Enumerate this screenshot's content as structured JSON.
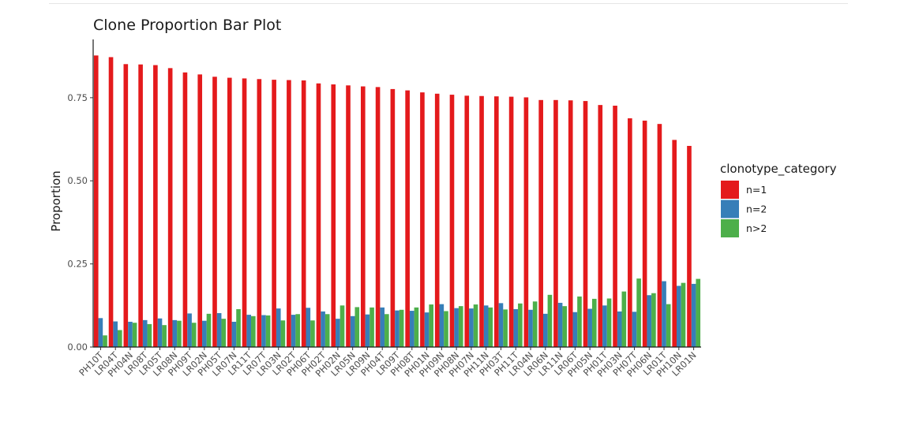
{
  "chart_data": {
    "type": "bar",
    "title": "Clone Proportion Bar Plot",
    "xlabel": "",
    "ylabel": "Proportion",
    "ylim": [
      0,
      0.93
    ],
    "yticks": [
      0.0,
      0.25,
      0.5,
      0.75
    ],
    "ytick_labels": [
      "0.00",
      "0.25",
      "0.50",
      "0.75"
    ],
    "grid": false,
    "legend": {
      "title": "clonotype_category",
      "position": "right"
    },
    "categories": [
      "PH10T",
      "LR04T",
      "PH04N",
      "LR08T",
      "LR05T",
      "LR08N",
      "PH09T",
      "LR02N",
      "PH05T",
      "LR07N",
      "LR11T",
      "LR07T",
      "LR03N",
      "LR02T",
      "PH06T",
      "PH02T",
      "PH02N",
      "LR05N",
      "LR09N",
      "PH04T",
      "LR09T",
      "PH08T",
      "PH01N",
      "PH09N",
      "PH08N",
      "PH07N",
      "PH11N",
      "PH03T",
      "PH11T",
      "LR04N",
      "LR06N",
      "LR11N",
      "LR06T",
      "PH05N",
      "PH01T",
      "PH03N",
      "PH07T",
      "PH06N",
      "LR01T",
      "PH10N",
      "LR01N"
    ],
    "series": [
      {
        "name": "n=1",
        "color": "#E41A1C",
        "values": [
          0.877,
          0.872,
          0.851,
          0.85,
          0.848,
          0.839,
          0.826,
          0.82,
          0.813,
          0.81,
          0.808,
          0.806,
          0.804,
          0.803,
          0.802,
          0.793,
          0.79,
          0.787,
          0.784,
          0.782,
          0.776,
          0.772,
          0.766,
          0.762,
          0.759,
          0.756,
          0.755,
          0.754,
          0.753,
          0.751,
          0.743,
          0.743,
          0.742,
          0.74,
          0.728,
          0.726,
          0.688,
          0.681,
          0.671,
          0.623,
          0.605
        ]
      },
      {
        "name": "n=2",
        "color": "#377EB8",
        "values": [
          0.087,
          0.077,
          0.076,
          0.081,
          0.086,
          0.081,
          0.101,
          0.079,
          0.102,
          0.076,
          0.097,
          0.096,
          0.116,
          0.097,
          0.118,
          0.107,
          0.085,
          0.093,
          0.098,
          0.119,
          0.11,
          0.109,
          0.104,
          0.129,
          0.117,
          0.116,
          0.125,
          0.132,
          0.114,
          0.112,
          0.1,
          0.133,
          0.105,
          0.115,
          0.125,
          0.107,
          0.106,
          0.156,
          0.198,
          0.184,
          0.19
        ]
      },
      {
        "name": "n>2",
        "color": "#4DAF4A",
        "values": [
          0.035,
          0.051,
          0.073,
          0.069,
          0.066,
          0.079,
          0.073,
          0.1,
          0.085,
          0.114,
          0.093,
          0.095,
          0.08,
          0.099,
          0.08,
          0.099,
          0.125,
          0.12,
          0.119,
          0.099,
          0.112,
          0.119,
          0.128,
          0.108,
          0.123,
          0.128,
          0.119,
          0.113,
          0.131,
          0.137,
          0.157,
          0.123,
          0.152,
          0.145,
          0.146,
          0.167,
          0.206,
          0.162,
          0.129,
          0.193,
          0.205
        ]
      }
    ]
  }
}
